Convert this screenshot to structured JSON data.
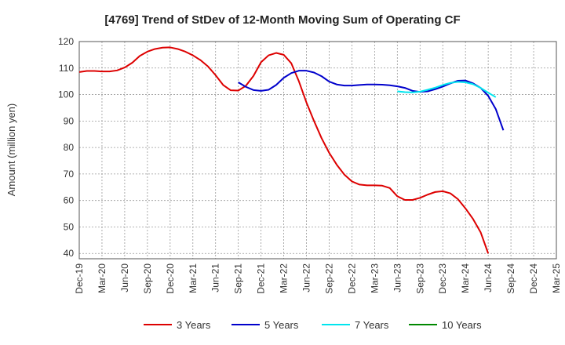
{
  "chart_data": {
    "type": "line",
    "title": "[4769]  Trend of StDev of 12-Month Moving Sum of Operating CF",
    "xlabel": "",
    "ylabel": "Amount (million yen)",
    "ylim": [
      38,
      120
    ],
    "yticks": [
      40,
      50,
      60,
      70,
      80,
      90,
      100,
      110,
      120
    ],
    "xticks": [
      "Dec-19",
      "Mar-20",
      "Jun-20",
      "Sep-20",
      "Dec-20",
      "Mar-21",
      "Jun-21",
      "Sep-21",
      "Dec-21",
      "Mar-22",
      "Jun-22",
      "Sep-22",
      "Dec-22",
      "Mar-23",
      "Jun-23",
      "Sep-23",
      "Dec-23",
      "Mar-24",
      "Jun-24",
      "Sep-24",
      "Dec-24",
      "Mar-25"
    ],
    "grid": true,
    "legend_position": "bottom",
    "series": [
      {
        "name": "3 Years",
        "color": "#dd0000",
        "start_index": 0,
        "values": [
          108.5,
          108.9,
          108.9,
          108.7,
          108.7,
          109.1,
          110.2,
          112.0,
          114.6,
          116.2,
          117.2,
          117.7,
          117.8,
          117.2,
          116.2,
          114.8,
          113.0,
          110.6,
          107.3,
          103.6,
          101.6,
          101.5,
          103.3,
          107.0,
          112.2,
          114.8,
          115.7,
          115.0,
          111.8,
          105.0,
          97.0,
          90.0,
          83.5,
          78.0,
          73.5,
          69.8,
          67.2,
          66.0,
          65.7,
          65.7,
          65.6,
          64.7,
          61.6,
          60.2,
          60.2,
          61.0,
          62.2,
          63.2,
          63.5,
          62.7,
          60.5,
          57.0,
          53.0,
          48.0,
          40.0
        ]
      },
      {
        "name": "5 Years",
        "color": "#0000cc",
        "start_index": 21,
        "values": [
          104.6,
          102.9,
          101.7,
          101.4,
          101.8,
          103.6,
          106.3,
          108.1,
          109.0,
          109.0,
          108.3,
          106.9,
          104.9,
          103.8,
          103.4,
          103.4,
          103.6,
          103.8,
          103.8,
          103.7,
          103.5,
          103.1,
          102.5,
          101.4,
          101.0,
          101.2,
          102.0,
          103.0,
          104.2,
          105.2,
          105.3,
          104.2,
          102.5,
          99.5,
          94.5,
          86.5
        ]
      },
      {
        "name": "7 Years",
        "color": "#00e5ee",
        "start_index": 42,
        "values": [
          101.2,
          100.9,
          100.8,
          101.1,
          101.8,
          102.6,
          103.6,
          104.4,
          104.8,
          104.6,
          103.9,
          102.5,
          100.7,
          99.0
        ]
      },
      {
        "name": "10 Years",
        "color": "#008800",
        "start_index": 0,
        "values": []
      }
    ]
  }
}
